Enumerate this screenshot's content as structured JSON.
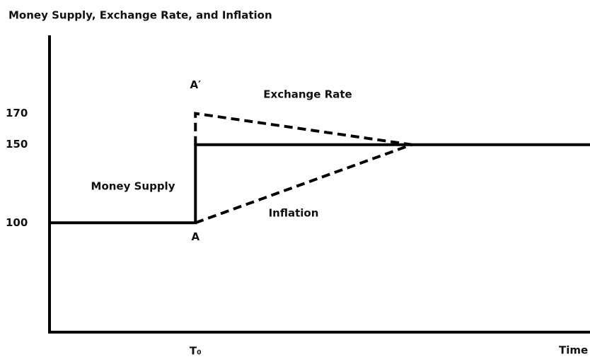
{
  "chart_data": {
    "type": "line",
    "title": "Money Supply, Exchange Rate, and Inflation",
    "x_label": "Time",
    "xlim": [
      0,
      100
    ],
    "xticks": [
      {
        "value": 27,
        "label": "T₀"
      }
    ],
    "ylim": [
      30,
      220
    ],
    "yticks": [
      100,
      150,
      170
    ],
    "grid": false,
    "series": [
      {
        "name": "Money Supply",
        "color": "#000000",
        "dashed": false,
        "x": [
          0,
          27,
          27,
          100
        ],
        "values": [
          100,
          100,
          150,
          150
        ]
      },
      {
        "name": "Exchange Rate",
        "color": "#000000",
        "dashed": true,
        "x": [
          27,
          27,
          67
        ],
        "values": [
          150,
          170,
          150
        ]
      },
      {
        "name": "Inflation",
        "color": "#000000",
        "dashed": true,
        "x": [
          27,
          67
        ],
        "values": [
          100,
          150
        ]
      }
    ],
    "annotations": [
      {
        "text": "A",
        "x": 27,
        "y": 100
      },
      {
        "text": "A′",
        "x": 27,
        "y": 170
      }
    ]
  }
}
